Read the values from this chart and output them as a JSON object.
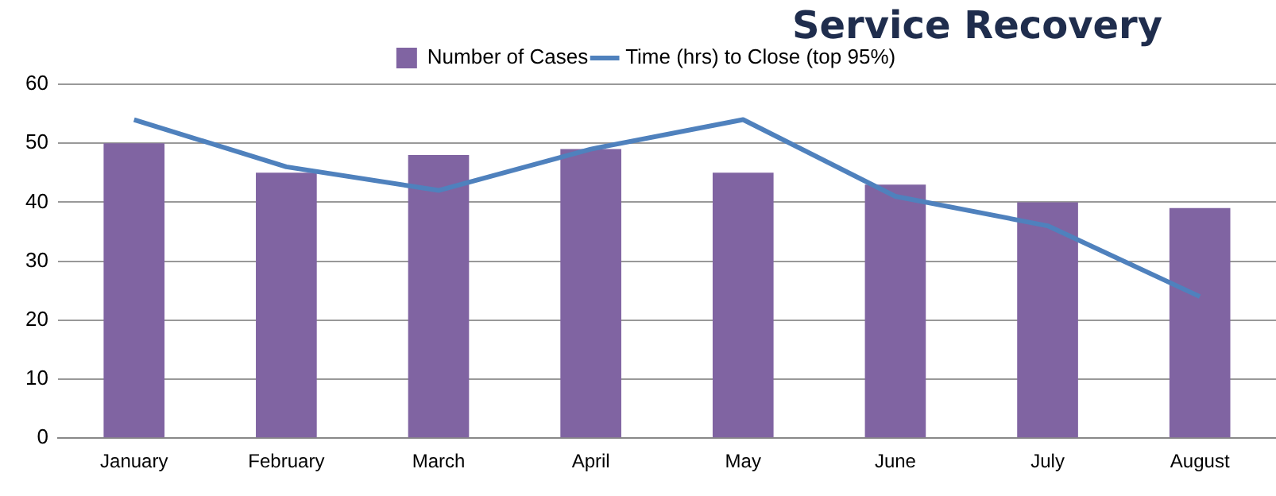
{
  "chart_data": {
    "type": "bar",
    "title": "Service Recovery",
    "categories": [
      "January",
      "February",
      "March",
      "April",
      "May",
      "June",
      "July",
      "August"
    ],
    "series": [
      {
        "name": "Number of Cases",
        "color": "#8064a2",
        "values": [
          50,
          45,
          48,
          49,
          45,
          43,
          40,
          39
        ]
      },
      {
        "name": "Time (hrs) to Close (top 95%)",
        "type": "line",
        "color": "#4f81bd",
        "values": [
          54,
          46,
          42,
          49,
          54,
          41,
          36,
          24
        ]
      }
    ],
    "ylim": [
      0,
      60
    ],
    "yticks": [
      0,
      10,
      20,
      30,
      40,
      50,
      60
    ],
    "grid": "y",
    "legend": "top",
    "marker": "none"
  }
}
